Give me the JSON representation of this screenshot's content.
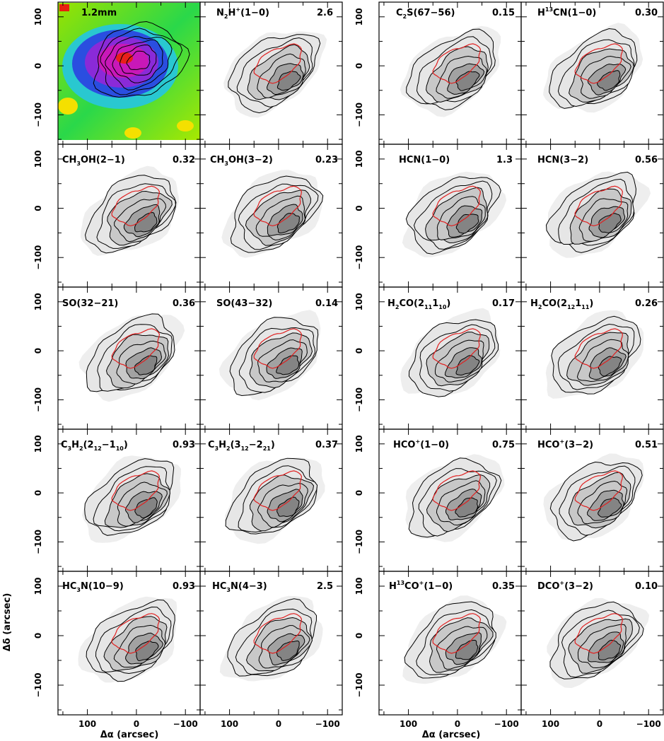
{
  "chart_data": {
    "type": "contour",
    "ylabel": "Δδ (arcsec)",
    "xlabel": "Δα (arcsec)",
    "xlim": [
      160,
      -130
    ],
    "ylim": [
      -160,
      130
    ],
    "x_ticks": [
      "100",
      "0",
      "−100"
    ],
    "y_ticks": [
      "100",
      "0",
      "−100"
    ],
    "panels": [
      {
        "molecule": "1.2mm",
        "peak": "",
        "colormap": true
      },
      {
        "molecule": "N2H+(1-0)",
        "peak": "2.6"
      },
      {
        "molecule": "C2S(67-56)",
        "peak": "0.15"
      },
      {
        "molecule": "H13CN(1-0)",
        "peak": "0.30"
      },
      {
        "molecule": "CH3OH(2-1)",
        "peak": "0.32"
      },
      {
        "molecule": "CH3OH(3-2)",
        "peak": "0.23"
      },
      {
        "molecule": "HCN(1-0)",
        "peak": "1.3"
      },
      {
        "molecule": "HCN(3-2)",
        "peak": "0.56"
      },
      {
        "molecule": "SO(32-21)",
        "peak": "0.36"
      },
      {
        "molecule": "SO(43-32)",
        "peak": "0.14"
      },
      {
        "molecule": "H2CO(211-110)",
        "peak": "0.17"
      },
      {
        "molecule": "H2CO(212-111)",
        "peak": "0.26"
      },
      {
        "molecule": "C3H2(212-110)",
        "peak": "0.93"
      },
      {
        "molecule": "C3H2(312-221)",
        "peak": "0.37"
      },
      {
        "molecule": "HCO+(1-0)",
        "peak": "0.75"
      },
      {
        "molecule": "HCO+(3-2)",
        "peak": "0.51"
      },
      {
        "molecule": "HC3N(10-9)",
        "peak": "0.93"
      },
      {
        "molecule": "HC3N(4-3)",
        "peak": "2.5"
      },
      {
        "molecule": "H13CO+(1-0)",
        "peak": "0.35"
      },
      {
        "molecule": "DCO+(3-2)",
        "peak": "0.10"
      }
    ]
  },
  "labels_display": {
    "p0": "1.2mm",
    "p1_a": "N",
    "p1_b": "2",
    "p1_c": "H",
    "p1_d": "+",
    "p1_e": "(1−0)",
    "p2_a": "C",
    "p2_b": "2",
    "p2_c": "S(67−56)",
    "p3_a": "H",
    "p3_b": "13",
    "p3_c": "CN(1−0)",
    "p4_a": "CH",
    "p4_b": "3",
    "p4_c": "OH(2−1)",
    "p5_a": "CH",
    "p5_b": "3",
    "p5_c": "OH(3−2)",
    "p6": "HCN(1−0)",
    "p7": "HCN(3−2)",
    "p8": "SO(32−21)",
    "p9": "SO(43−32)",
    "p10_a": "H",
    "p10_b": "2",
    "p10_c": "CO(2",
    "p10_d": "11",
    "p10_e": "1",
    "p10_f": "10",
    "p10_g": ")",
    "p11_a": "H",
    "p11_b": "2",
    "p11_c": "CO(2",
    "p11_d": "12",
    "p11_e": "1",
    "p11_f": "11",
    "p11_g": ")",
    "p12_a": "C",
    "p12_b": "3",
    "p12_c": "H",
    "p12_d": "2",
    "p12_e": "(2",
    "p12_f": "12",
    "p12_g": "−1",
    "p12_h": "10",
    "p12_i": ")",
    "p13_a": "C",
    "p13_b": "3",
    "p13_c": "H",
    "p13_d": "2",
    "p13_e": "(3",
    "p13_f": "12",
    "p13_g": "−2",
    "p13_h": "21",
    "p13_i": ")",
    "p14_a": "HCO",
    "p14_b": "+",
    "p14_c": "(1−0)",
    "p15_a": "HCO",
    "p15_b": "+",
    "p15_c": "(3−2)",
    "p16_a": "HC",
    "p16_b": "3",
    "p16_c": "N(10−9)",
    "p17_a": "HC",
    "p17_b": "3",
    "p17_c": "N(4−3)",
    "p18_a": "H",
    "p18_b": "13",
    "p18_c": "CO",
    "p18_d": "+",
    "p18_e": "(1−0)",
    "p19_a": "DCO",
    "p19_b": "+",
    "p19_c": "(3−2)"
  },
  "colors": {
    "axis": "#000000",
    "contour": "#000000",
    "overlay": "#e02020",
    "fill_light": "#e6e6e6",
    "fill_mid": "#c8c8c8",
    "fill_dark": "#a2a2a2",
    "fill_darkest": "#848484"
  }
}
